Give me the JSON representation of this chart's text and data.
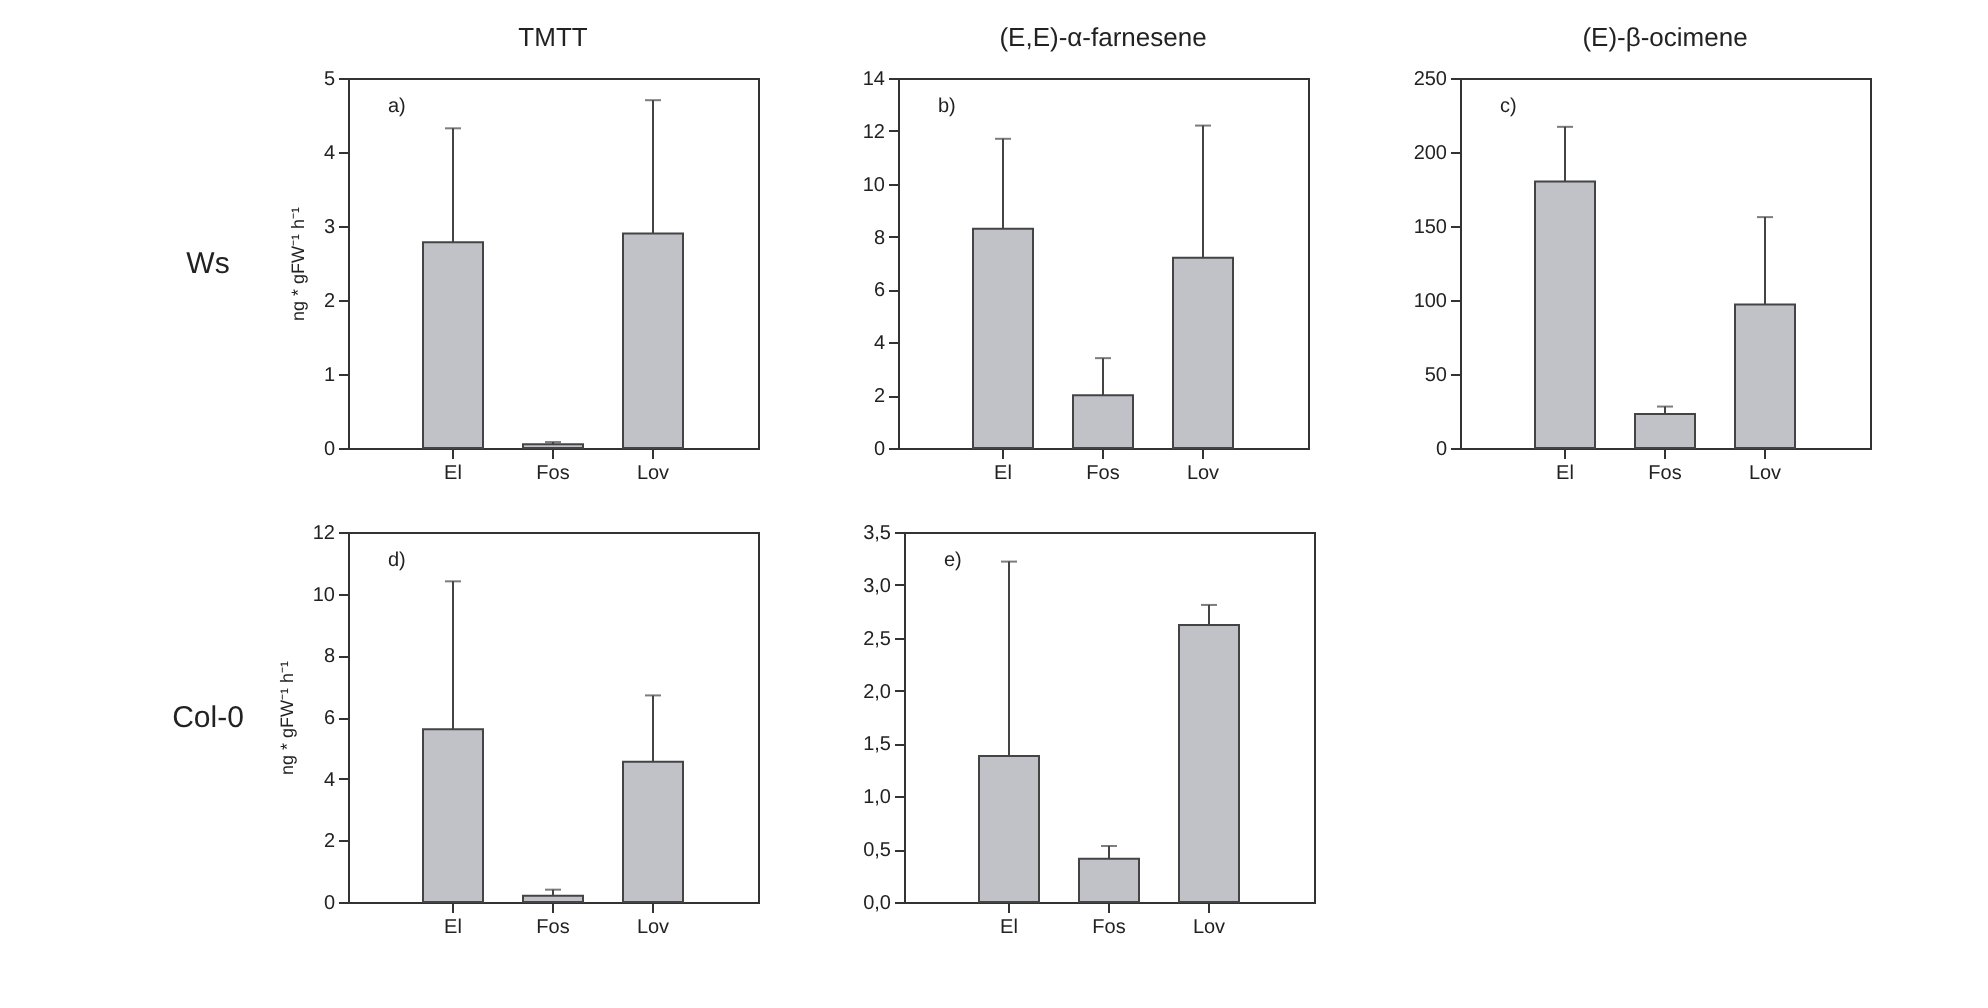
{
  "chart_data": [
    {
      "type": "bar",
      "title": "TMTT",
      "ylabel": "ng * gFW⁻¹ h⁻¹",
      "categories": [
        "El",
        "Fos",
        "Lov"
      ],
      "values": [
        2.78,
        0.05,
        2.9
      ],
      "errors": [
        [
          2.78,
          4.32
        ],
        [
          0.05,
          0.08
        ],
        [
          2.9,
          4.7
        ]
      ],
      "color": "#c0c2c8",
      "ylim": [
        0,
        5
      ],
      "yticks": [
        0,
        1,
        2,
        3,
        4,
        5
      ],
      "annotations": [
        "a)",
        "Ws"
      ]
    },
    {
      "type": "bar",
      "title": "(E,E)-α-farnesene",
      "categories": [
        "El",
        "Fos",
        "Lov"
      ],
      "values": [
        8.3,
        2.0,
        7.2
      ],
      "errors": [
        [
          8.3,
          11.7
        ],
        [
          2.0,
          3.4
        ],
        [
          7.2,
          12.2
        ]
      ],
      "color": "#c0c2c8",
      "ylim": [
        0,
        14
      ],
      "yticks": [
        0,
        2,
        4,
        6,
        8,
        10,
        12,
        14
      ],
      "annotations": [
        "b)"
      ]
    },
    {
      "type": "bar",
      "title": "(E)-β-ocimene",
      "categories": [
        "El",
        "Fos",
        "Lov"
      ],
      "values": [
        180,
        23,
        97
      ],
      "errors": [
        [
          180,
          217
        ],
        [
          23,
          28
        ],
        [
          97,
          156
        ]
      ],
      "color": "#c0c2c8",
      "ylim": [
        0,
        250
      ],
      "yticks": [
        0,
        50,
        100,
        150,
        200,
        250
      ],
      "annotations": [
        "c)"
      ]
    },
    {
      "type": "bar",
      "ylabel": "ng * gFW⁻¹ h⁻¹",
      "categories": [
        "El",
        "Fos",
        "Lov"
      ],
      "values": [
        5.6,
        0.2,
        4.55
      ],
      "errors": [
        [
          5.6,
          10.4
        ],
        [
          0.2,
          0.4
        ],
        [
          4.55,
          6.7
        ]
      ],
      "color": "#c0c2c8",
      "ylim": [
        0,
        12
      ],
      "yticks": [
        0,
        2,
        4,
        6,
        8,
        10,
        12
      ],
      "annotations": [
        "d)",
        "Col-0"
      ]
    },
    {
      "type": "bar",
      "categories": [
        "El",
        "Fos",
        "Lov"
      ],
      "values": [
        1.38,
        0.41,
        2.62
      ],
      "errors": [
        [
          1.38,
          3.22
        ],
        [
          0.41,
          0.53
        ],
        [
          2.62,
          2.81
        ]
      ],
      "color": "#c0c2c8",
      "ylim": [
        0,
        3.5
      ],
      "yticks": [
        {
          "value": 0,
          "label": "0,0"
        },
        {
          "value": 0.5,
          "label": "0,5"
        },
        {
          "value": 1,
          "label": "1,0"
        },
        {
          "value": 1.5,
          "label": "1,5"
        },
        {
          "value": 2,
          "label": "2,0"
        },
        {
          "value": 2.5,
          "label": "2,5"
        },
        {
          "value": 3,
          "label": "3,0"
        },
        {
          "value": 3.5,
          "label": "3,5"
        }
      ],
      "annotations": [
        "e)"
      ]
    }
  ]
}
